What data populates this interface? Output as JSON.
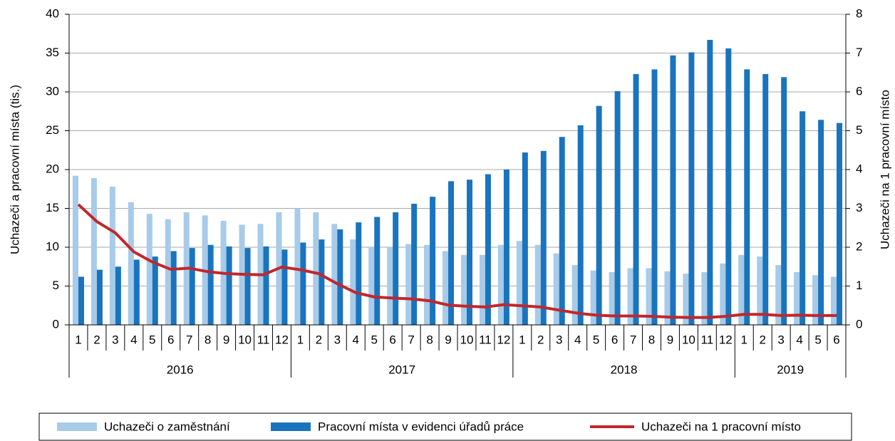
{
  "chart_data": {
    "type": "bar",
    "y_label": "Uchazeči a pracovní místa (tis.)",
    "y2_label": "Uchazeči na 1 pracovní místo",
    "groups": [
      {
        "name": "2016",
        "categories": [
          "1",
          "2",
          "3",
          "4",
          "5",
          "6",
          "7",
          "8",
          "9",
          "10",
          "11",
          "12"
        ]
      },
      {
        "name": "2017",
        "categories": [
          "1",
          "2",
          "3",
          "4",
          "5",
          "6",
          "7",
          "8",
          "9",
          "10",
          "11",
          "12"
        ]
      },
      {
        "name": "2018",
        "categories": [
          "1",
          "2",
          "3",
          "4",
          "5",
          "6",
          "7",
          "8",
          "9",
          "10",
          "11",
          "12"
        ]
      },
      {
        "name": "2019",
        "categories": [
          "1",
          "2",
          "3",
          "4",
          "5",
          "6"
        ]
      }
    ],
    "series": [
      {
        "name": "Uchazeči o zaměstnání",
        "type": "bar",
        "color": "#a7cbe8",
        "values": [
          19.2,
          18.9,
          17.8,
          15.8,
          14.3,
          13.6,
          14.5,
          14.1,
          13.4,
          12.9,
          13.0,
          14.5,
          15.0,
          14.5,
          13.0,
          11.0,
          10.0,
          10.0,
          10.4,
          10.3,
          9.5,
          9.0,
          9.0,
          10.3,
          10.8,
          10.3,
          9.2,
          7.7,
          7.0,
          6.8,
          7.3,
          7.3,
          6.9,
          6.6,
          6.8,
          7.9,
          9.0,
          8.8,
          7.7,
          6.8,
          6.4,
          6.2
        ]
      },
      {
        "name": "Pracovní místa v evidenci úřadů práce",
        "type": "bar",
        "color": "#1a74bd",
        "values": [
          6.2,
          7.1,
          7.5,
          8.4,
          8.8,
          9.5,
          9.9,
          10.3,
          10.1,
          9.9,
          10.1,
          9.7,
          10.6,
          11.0,
          12.3,
          13.2,
          13.9,
          14.5,
          15.6,
          16.5,
          18.5,
          18.7,
          19.4,
          20.0,
          22.2,
          22.4,
          24.2,
          25.7,
          28.2,
          30.1,
          32.3,
          32.9,
          34.7,
          35.1,
          36.7,
          35.6,
          32.9,
          32.3,
          31.9,
          27.5,
          26.4,
          26.0
        ]
      },
      {
        "name": "Uchazeči na 1 pracovní místo",
        "type": "line",
        "axis": "y2",
        "color": "#c0272d",
        "values": [
          3.1,
          2.66,
          2.37,
          1.88,
          1.62,
          1.43,
          1.46,
          1.37,
          1.32,
          1.3,
          1.29,
          1.49,
          1.42,
          1.32,
          1.06,
          0.83,
          0.72,
          0.69,
          0.67,
          0.62,
          0.51,
          0.48,
          0.46,
          0.52,
          0.49,
          0.46,
          0.38,
          0.3,
          0.25,
          0.23,
          0.23,
          0.22,
          0.2,
          0.19,
          0.19,
          0.22,
          0.27,
          0.27,
          0.24,
          0.25,
          0.24,
          0.24
        ]
      }
    ],
    "ylim": [
      0,
      40
    ],
    "yticks": [
      0,
      5,
      10,
      15,
      20,
      25,
      30,
      35,
      40
    ],
    "y2lim": [
      0,
      8
    ],
    "y2ticks": [
      0,
      1,
      2,
      3,
      4,
      5,
      6,
      7,
      8
    ],
    "grid": true,
    "legend": "bottom"
  }
}
